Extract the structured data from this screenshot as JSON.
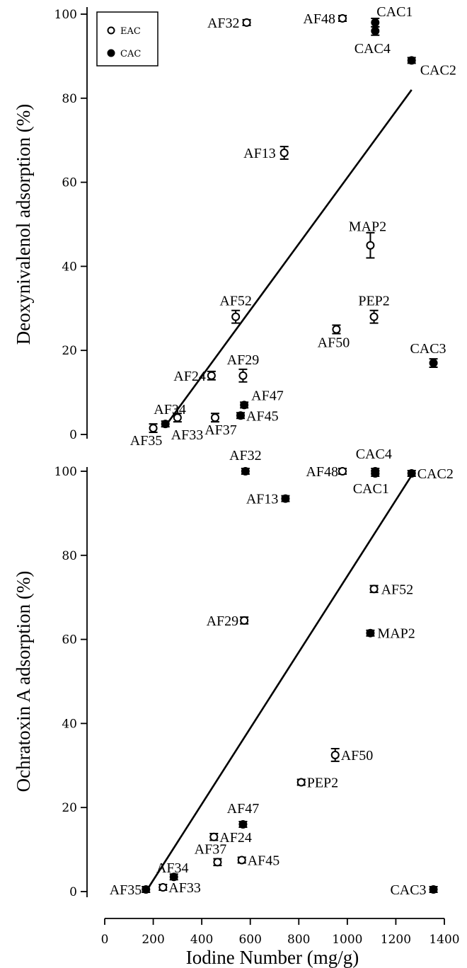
{
  "chart_data": [
    {
      "type": "scatter",
      "panel": "top",
      "ylabel": "Deoxynivalenol adsorption (%)",
      "ylim": [
        0,
        100
      ],
      "yticks": [
        "0",
        "20",
        "40",
        "60",
        "80",
        "100"
      ],
      "legend": {
        "placement": "top-left",
        "entries": [
          {
            "label": "EAC",
            "marker": "open-circle"
          },
          {
            "label": "CAC",
            "marker": "filled-circle"
          }
        ]
      },
      "fit_line": {
        "x": [
          250,
          1265
        ],
        "y": [
          2,
          82
        ]
      },
      "series": [
        {
          "name": "EAC",
          "points": [
            {
              "label": "AF32",
              "x": 585,
              "y": 98,
              "err": 0.5
            },
            {
              "label": "AF48",
              "x": 980,
              "y": 99,
              "err": 0.5
            },
            {
              "label": "AF13",
              "x": 740,
              "y": 67,
              "err": 1.5
            },
            {
              "label": "MAP2",
              "x": 1095,
              "y": 45,
              "err": 3
            },
            {
              "label": "AF52",
              "x": 540,
              "y": 28,
              "err": 1.5
            },
            {
              "label": "PEP2",
              "x": 1110,
              "y": 28,
              "err": 1.5
            },
            {
              "label": "AF50",
              "x": 955,
              "y": 25,
              "err": 1
            },
            {
              "label": "AF29",
              "x": 570,
              "y": 14,
              "err": 1.5
            },
            {
              "label": "AF24",
              "x": 440,
              "y": 14,
              "err": 1
            },
            {
              "label": "AF34",
              "x": 300,
              "y": 4,
              "err": 1
            },
            {
              "label": "AF37",
              "x": 455,
              "y": 4,
              "err": 1
            },
            {
              "label": "AF35",
              "x": 200,
              "y": 1.5,
              "err": 1
            }
          ]
        },
        {
          "name": "CAC",
          "points": [
            {
              "label": "CAC1",
              "x": 1115,
              "y": 98,
              "err": 1
            },
            {
              "label": "CAC4",
              "x": 1115,
              "y": 96,
              "err": 1
            },
            {
              "label": "CAC2",
              "x": 1265,
              "y": 89,
              "err": 0.5
            },
            {
              "label": "CAC3",
              "x": 1355,
              "y": 17,
              "err": 1
            },
            {
              "label": "AF47",
              "x": 575,
              "y": 7,
              "err": 0.5
            },
            {
              "label": "AF45",
              "x": 560,
              "y": 4.5,
              "err": 0.5
            },
            {
              "label": "AF33",
              "x": 250,
              "y": 2.5,
              "err": 0.5
            }
          ]
        }
      ],
      "point_labels": [
        {
          "text": "AF32",
          "anchor": "end",
          "dx": -10,
          "dy": 7
        },
        {
          "text": "AF48",
          "anchor": "end",
          "dx": -10,
          "dy": 7
        },
        {
          "text": "AF13",
          "anchor": "end",
          "dx": -12,
          "dy": 7
        },
        {
          "text": "MAP2",
          "anchor": "middle",
          "dx": -4,
          "dy": -20
        },
        {
          "text": "AF52",
          "anchor": "middle",
          "dx": 0,
          "dy": -16
        },
        {
          "text": "PEP2",
          "anchor": "middle",
          "dx": 0,
          "dy": -16
        },
        {
          "text": "AF50",
          "anchor": "middle",
          "dx": -4,
          "dy": 25
        },
        {
          "text": "AF29",
          "anchor": "middle",
          "dx": 0,
          "dy": -16
        },
        {
          "text": "AF24",
          "anchor": "end",
          "dx": -8,
          "dy": 7
        },
        {
          "text": "AF34",
          "anchor": "end",
          "dx": 12,
          "dy": -5
        },
        {
          "text": "AF37",
          "anchor": "middle",
          "dx": 8,
          "dy": 24
        },
        {
          "text": "AF35",
          "anchor": "middle",
          "dx": -10,
          "dy": 24
        },
        {
          "text": "CAC1",
          "anchor": "start",
          "dx": 2,
          "dy": -9
        },
        {
          "text": "CAC4",
          "anchor": "middle",
          "dx": -4,
          "dy": 31
        },
        {
          "text": "CAC2",
          "anchor": "start",
          "dx": 12,
          "dy": 20
        },
        {
          "text": "CAC3",
          "anchor": "end",
          "dx": 18,
          "dy": -14
        },
        {
          "text": "AF47",
          "anchor": "start",
          "dx": 10,
          "dy": -7
        },
        {
          "text": "AF45",
          "anchor": "start",
          "dx": 8,
          "dy": 7
        },
        {
          "text": "AF33",
          "anchor": "start",
          "dx": 8,
          "dy": 22
        }
      ]
    },
    {
      "type": "scatter",
      "panel": "bottom",
      "xlabel": "Iodine Number (mg/g)",
      "ylabel": "Ochratoxin A adsorption (%)",
      "xlim": [
        0,
        1400
      ],
      "xticks": [
        "0",
        "200",
        "400",
        "600",
        "800",
        "1000",
        "1200",
        "1400"
      ],
      "ylim": [
        0,
        100
      ],
      "yticks": [
        "0",
        "20",
        "40",
        "60",
        "80",
        "100"
      ],
      "fit_line": {
        "x": [
          170,
          1265
        ],
        "y": [
          0,
          99
        ]
      },
      "series": [
        {
          "name": "EAC",
          "points": [
            {
              "label": "AF48",
              "x": 980,
              "y": 100,
              "err": 0.3
            },
            {
              "label": "AF52",
              "x": 1110,
              "y": 72,
              "err": 0.8
            },
            {
              "label": "AF29",
              "x": 575,
              "y": 64.5,
              "err": 0.8
            },
            {
              "label": "AF50",
              "x": 950,
              "y": 32.5,
              "err": 1.5
            },
            {
              "label": "PEP2",
              "x": 810,
              "y": 26,
              "err": 0.5
            },
            {
              "label": "AF24",
              "x": 450,
              "y": 13,
              "err": 0.8
            },
            {
              "label": "AF37",
              "x": 465,
              "y": 7,
              "err": 0.8
            },
            {
              "label": "AF45",
              "x": 565,
              "y": 7.5,
              "err": 0.5
            },
            {
              "label": "AF33",
              "x": 240,
              "y": 1,
              "err": 0.5
            }
          ]
        },
        {
          "name": "CAC",
          "points": [
            {
              "label": "AF32",
              "x": 580,
              "y": 100,
              "err": 0.3
            },
            {
              "label": "CAC4",
              "x": 1115,
              "y": 100,
              "err": 0.5
            },
            {
              "label": "CAC1",
              "x": 1115,
              "y": 99.5,
              "err": 0.5
            },
            {
              "label": "CAC2",
              "x": 1265,
              "y": 99.5,
              "err": 0.3
            },
            {
              "label": "AF13",
              "x": 745,
              "y": 93.5,
              "err": 0.3
            },
            {
              "label": "MAP2",
              "x": 1095,
              "y": 61.5,
              "err": 0.3
            },
            {
              "label": "AF47",
              "x": 570,
              "y": 16,
              "err": 0.5
            },
            {
              "label": "AF34",
              "x": 285,
              "y": 3.5,
              "err": 0.3
            },
            {
              "label": "AF35",
              "x": 170,
              "y": 0.5,
              "err": 0.3
            },
            {
              "label": "CAC3",
              "x": 1355,
              "y": 0.5,
              "err": 0.3
            }
          ]
        }
      ],
      "point_labels": [
        {
          "text": "AF32",
          "anchor": "middle",
          "dx": 0,
          "dy": -16
        },
        {
          "text": "AF48",
          "anchor": "end",
          "dx": -6,
          "dy": 7
        },
        {
          "text": "CAC4",
          "anchor": "middle",
          "dx": -2,
          "dy": -18
        },
        {
          "text": "CAC1",
          "anchor": "middle",
          "dx": -6,
          "dy": 28
        },
        {
          "text": "CAC2",
          "anchor": "start",
          "dx": 8,
          "dy": 7
        },
        {
          "text": "AF13",
          "anchor": "end",
          "dx": -10,
          "dy": 7
        },
        {
          "text": "AF52",
          "anchor": "start",
          "dx": 10,
          "dy": 7
        },
        {
          "text": "AF29",
          "anchor": "end",
          "dx": -8,
          "dy": 7
        },
        {
          "text": "MAP2",
          "anchor": "start",
          "dx": 10,
          "dy": 7
        },
        {
          "text": "AF50",
          "anchor": "start",
          "dx": 8,
          "dy": 7
        },
        {
          "text": "PEP2",
          "anchor": "start",
          "dx": 8,
          "dy": 7
        },
        {
          "text": "AF47",
          "anchor": "middle",
          "dx": 0,
          "dy": -16
        },
        {
          "text": "AF24",
          "anchor": "start",
          "dx": 8,
          "dy": 7
        },
        {
          "text": "AF37",
          "anchor": "middle",
          "dx": -10,
          "dy": -12
        },
        {
          "text": "AF34",
          "anchor": "middle",
          "dx": -2,
          "dy": -6
        },
        {
          "text": "AF45",
          "anchor": "start",
          "dx": 8,
          "dy": 7
        },
        {
          "text": "AF35",
          "anchor": "end",
          "dx": -6,
          "dy": 7
        },
        {
          "text": "AF33",
          "anchor": "start",
          "dx": 8,
          "dy": 7
        },
        {
          "text": "CAC3",
          "anchor": "end",
          "dx": -10,
          "dy": 7
        }
      ]
    }
  ]
}
